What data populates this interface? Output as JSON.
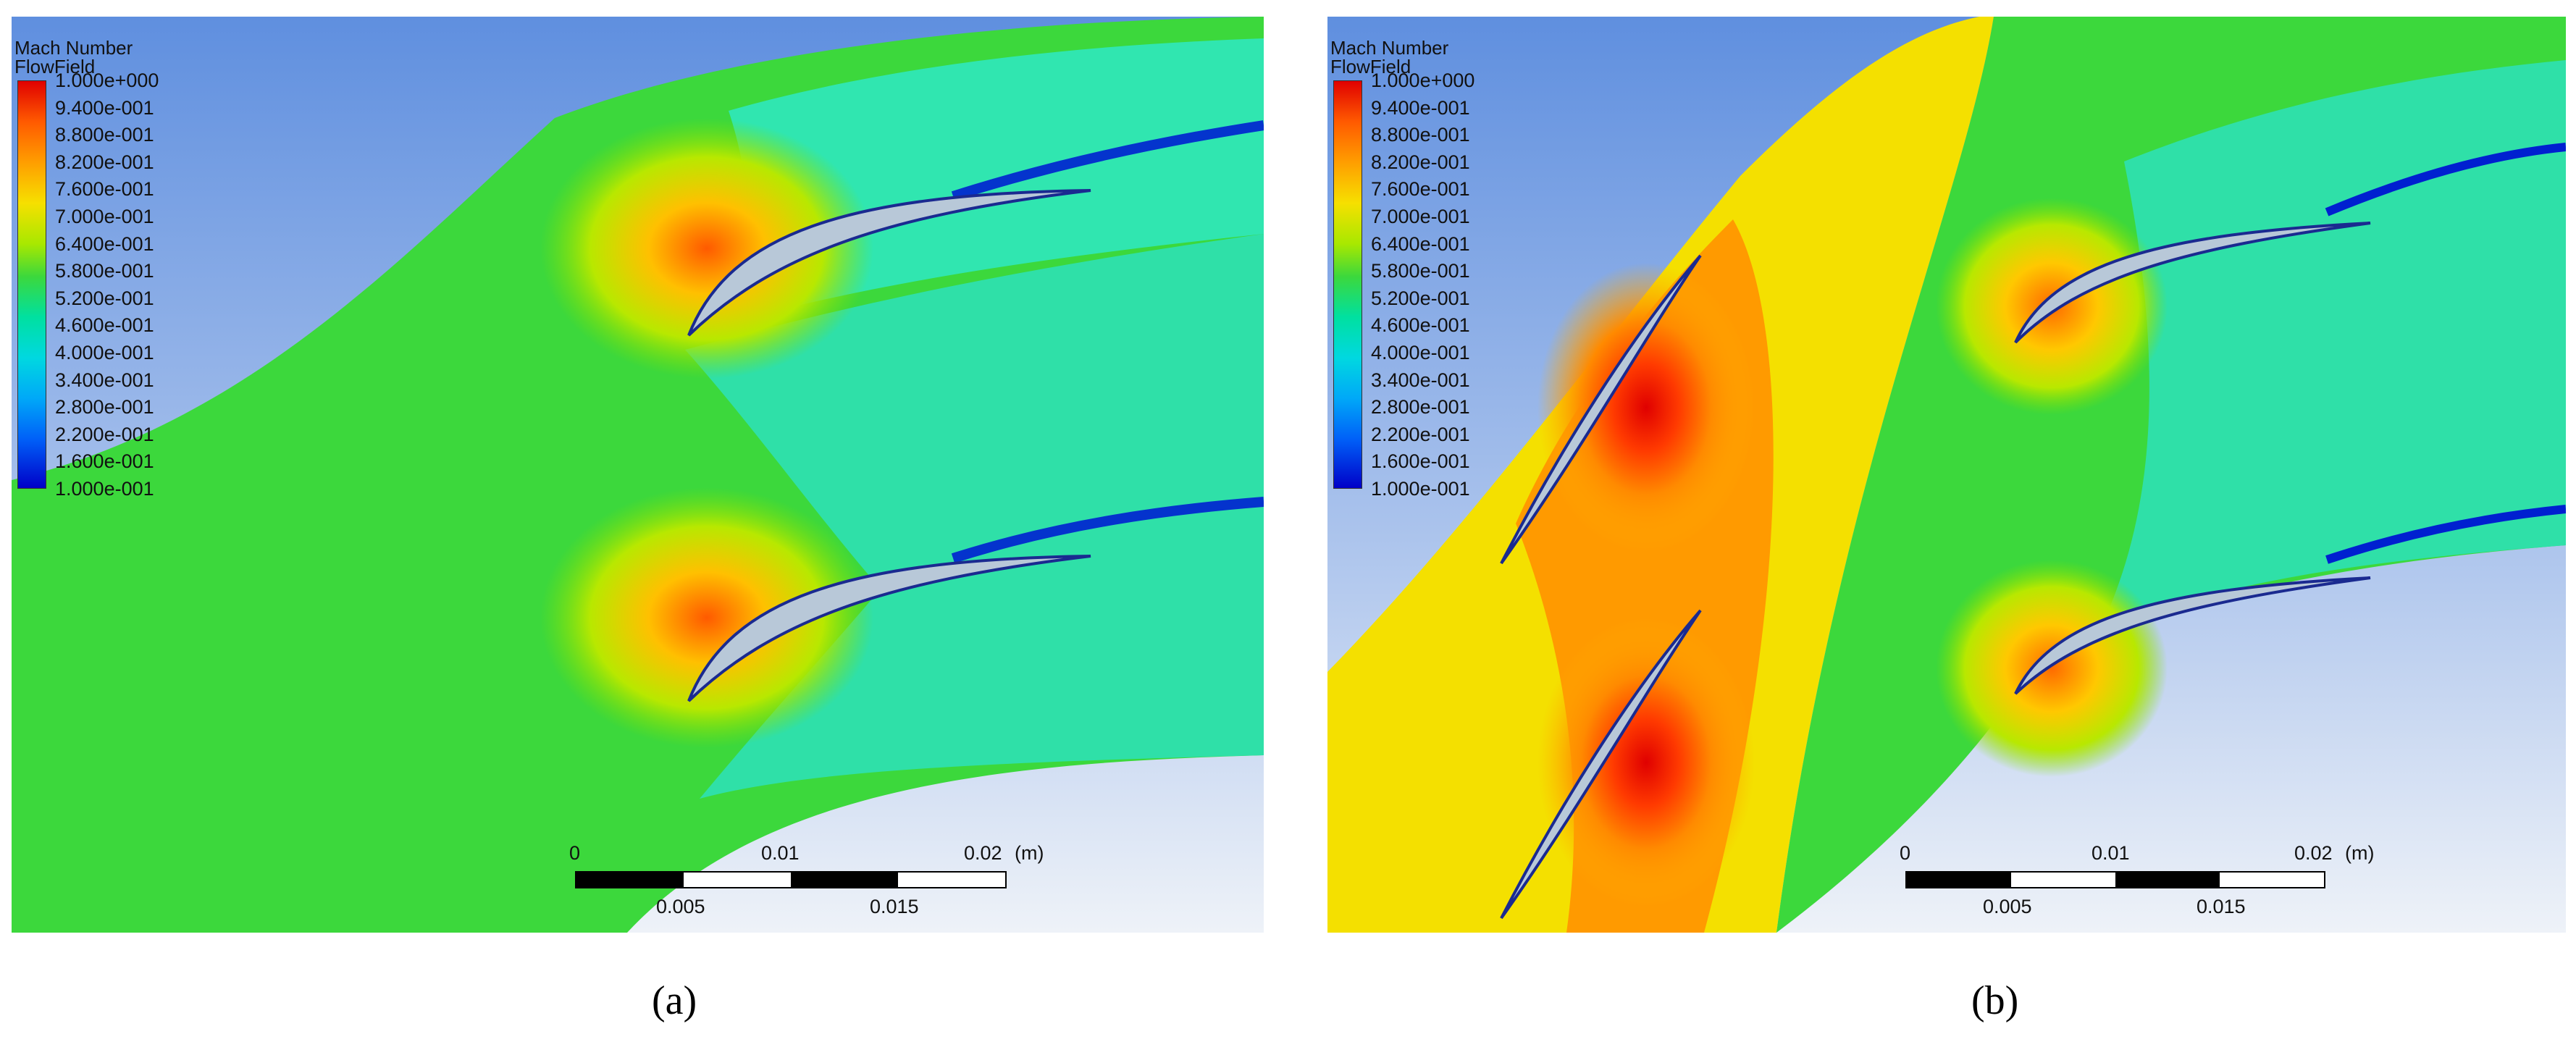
{
  "panels": [
    {
      "id": "a",
      "legend": {
        "title": "Mach Number",
        "subtitle": "FlowField",
        "ticks": [
          "1.000e+000",
          "9.400e-001",
          "8.800e-001",
          "8.200e-001",
          "7.600e-001",
          "7.000e-001",
          "6.400e-001",
          "5.800e-001",
          "5.200e-001",
          "4.600e-001",
          "4.000e-001",
          "3.400e-001",
          "2.800e-001",
          "2.200e-001",
          "1.600e-001",
          "1.000e-001"
        ]
      },
      "scale": {
        "top_labels": [
          "0",
          "0.01",
          "0.02",
          "(m)"
        ],
        "bottom_labels": [
          "0.005",
          "0.015"
        ]
      },
      "caption": "(a)"
    },
    {
      "id": "b",
      "legend": {
        "title": "Mach Number",
        "subtitle": "FlowField",
        "ticks": [
          "1.000e+000",
          "9.400e-001",
          "8.800e-001",
          "8.200e-001",
          "7.600e-001",
          "7.000e-001",
          "6.400e-001",
          "5.800e-001",
          "5.200e-001",
          "4.600e-001",
          "4.000e-001",
          "3.400e-001",
          "2.800e-001",
          "2.200e-001",
          "1.600e-001",
          "1.000e-001"
        ]
      },
      "scale": {
        "top_labels": [
          "0",
          "0.01",
          "0.02",
          "(m)"
        ],
        "bottom_labels": [
          "0.005",
          "0.015"
        ]
      },
      "caption": "(b)"
    }
  ],
  "colors": {
    "background_top": "#5f8fdf",
    "background_bottom": "#eef2f8",
    "mach_high": "#e00000",
    "mach_mid": "#3cd83c",
    "mach_low": "#0000c8",
    "blade_fill": "#b8c8d8"
  }
}
